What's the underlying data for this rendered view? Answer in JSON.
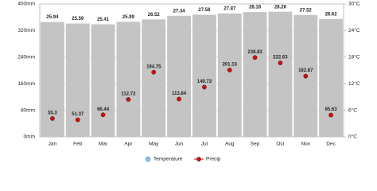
{
  "chart_data": {
    "type": "climate",
    "categories": [
      "Jan",
      "Feb",
      "Mar",
      "Apr",
      "May",
      "Jun",
      "Jul",
      "Aug",
      "Sep",
      "Oct",
      "Nov",
      "Dec"
    ],
    "series": [
      {
        "name": "Temperature",
        "color": "#c4c4c4",
        "legend_color": "#8db8e2",
        "axis": "y2",
        "values": [
          25.94,
          25.59,
          25.41,
          25.99,
          26.52,
          27.34,
          27.58,
          27.87,
          28.18,
          28.26,
          27.52,
          26.62
        ]
      },
      {
        "name": "Precip",
        "color": "#d01010",
        "values": [
          55.3,
          51.37,
          66.44,
          112.72,
          194.75,
          113.84,
          149.73,
          201.15,
          238.83,
          222.63,
          182.87,
          65.63
        ]
      }
    ],
    "ylim": [
      0,
      400
    ],
    "yticks": [
      {
        "value": 0,
        "label": "0mm"
      },
      {
        "value": 80,
        "label": "80mm"
      },
      {
        "value": 160,
        "label": "160mm"
      },
      {
        "value": 240,
        "label": "240mm"
      },
      {
        "value": 320,
        "label": "320mm"
      },
      {
        "value": 400,
        "label": "400mm"
      }
    ],
    "y2lim": [
      0,
      30
    ],
    "y2ticks": [
      {
        "value": 0,
        "label": "0°C"
      },
      {
        "value": 6,
        "label": "6°C"
      },
      {
        "value": 12,
        "label": "12°C"
      },
      {
        "value": 18,
        "label": "18°C"
      },
      {
        "value": 24,
        "label": "24°C"
      },
      {
        "value": 30,
        "label": "30°C"
      }
    ],
    "grid": true
  }
}
